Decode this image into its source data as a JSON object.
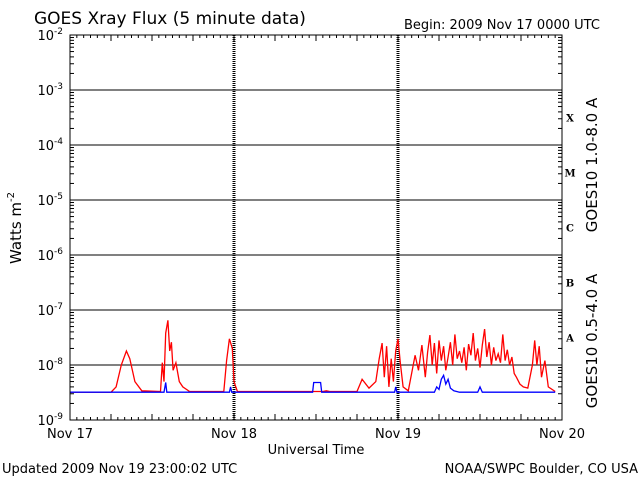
{
  "chart_data": {
    "type": "line",
    "title": "GOES Xray Flux (5 minute data)",
    "begin": "Begin:  2009 Nov 17 0000 UTC",
    "xlabel": "Universal Time",
    "ylabel": "Watts m",
    "ylabel_sup": "-2",
    "y_scale": "log",
    "ylim": [
      1e-09,
      0.01
    ],
    "y_ticks": [
      {
        "value": 0.01,
        "base": "10",
        "exp": "-2"
      },
      {
        "value": 0.001,
        "base": "10",
        "exp": "-3"
      },
      {
        "value": 0.0001,
        "base": "10",
        "exp": "-4"
      },
      {
        "value": 1e-05,
        "base": "10",
        "exp": "-5"
      },
      {
        "value": 1e-06,
        "base": "10",
        "exp": "-6"
      },
      {
        "value": 1e-07,
        "base": "10",
        "exp": "-7"
      },
      {
        "value": 1e-08,
        "base": "10",
        "exp": "-8"
      },
      {
        "value": 1e-09,
        "base": "10",
        "exp": "-9"
      }
    ],
    "xlim": [
      "2009-11-17 00:00",
      "2009-11-20 00:00"
    ],
    "x_ticks": [
      {
        "date": "2009-11-17 00:00",
        "label": "Nov 17"
      },
      {
        "date": "2009-11-18 00:00",
        "label": "Nov 18"
      },
      {
        "date": "2009-11-19 00:00",
        "label": "Nov 19"
      },
      {
        "date": "2009-11-20 00:00",
        "label": "Nov 20"
      }
    ],
    "flare_classes": [
      {
        "label": "X",
        "min": 0.0001,
        "max": 0.001
      },
      {
        "label": "M",
        "min": 1e-05,
        "max": 0.0001
      },
      {
        "label": "C",
        "min": 1e-06,
        "max": 1e-05
      },
      {
        "label": "B",
        "min": 1e-07,
        "max": 1e-06
      },
      {
        "label": "A",
        "min": 1e-08,
        "max": 1e-07
      }
    ],
    "grid": true,
    "series": [
      {
        "name": "GOES10 1.0-8.0 A",
        "color": "#ff0000",
        "points": [
          [
            "2009-11-17 00:00",
            3.2e-09
          ],
          [
            "2009-11-17 06:00",
            3.2e-09
          ],
          [
            "2009-11-17 06:45",
            4e-09
          ],
          [
            "2009-11-17 07:30",
            1e-08
          ],
          [
            "2009-11-17 08:15",
            1.8e-08
          ],
          [
            "2009-11-17 08:45",
            1.3e-08
          ],
          [
            "2009-11-17 09:30",
            5e-09
          ],
          [
            "2009-11-17 10:30",
            3.4e-09
          ],
          [
            "2009-11-17 13:15",
            3.3e-09
          ],
          [
            "2009-11-17 13:30",
            1.1e-08
          ],
          [
            "2009-11-17 13:45",
            5e-09
          ],
          [
            "2009-11-17 14:00",
            3.8e-08
          ],
          [
            "2009-11-17 14:20",
            6.5e-08
          ],
          [
            "2009-11-17 14:35",
            1.8e-08
          ],
          [
            "2009-11-17 14:50",
            2.6e-08
          ],
          [
            "2009-11-17 15:05",
            8e-09
          ],
          [
            "2009-11-17 15:30",
            1.1e-08
          ],
          [
            "2009-11-17 16:00",
            5e-09
          ],
          [
            "2009-11-17 16:30",
            4e-09
          ],
          [
            "2009-11-17 17:30",
            3.3e-09
          ],
          [
            "2009-11-17 22:30",
            3.3e-09
          ],
          [
            "2009-11-17 22:55",
            1.2e-08
          ],
          [
            "2009-11-17 23:20",
            3e-08
          ],
          [
            "2009-11-17 23:45",
            2e-08
          ],
          [
            "2009-11-18 00:00",
            5e-09
          ],
          [
            "2009-11-18 00:30",
            3.3e-09
          ],
          [
            "2009-11-18 13:00",
            3.3e-09
          ],
          [
            "2009-11-18 13:30",
            3.4e-09
          ],
          [
            "2009-11-18 14:00",
            3.3e-09
          ],
          [
            "2009-11-18 18:00",
            3.3e-09
          ],
          [
            "2009-11-18 18:45",
            5.5e-09
          ],
          [
            "2009-11-18 19:45",
            3.8e-09
          ],
          [
            "2009-11-18 20:45",
            5e-09
          ],
          [
            "2009-11-18 21:15",
            1.3e-08
          ],
          [
            "2009-11-18 21:40",
            2.5e-08
          ],
          [
            "2009-11-18 22:00",
            6e-09
          ],
          [
            "2009-11-18 22:20",
            2.2e-08
          ],
          [
            "2009-11-18 22:40",
            4e-09
          ],
          [
            "2009-11-18 23:00",
            1.3e-08
          ],
          [
            "2009-11-18 23:20",
            5e-09
          ],
          [
            "2009-11-18 23:40",
            1.8e-08
          ],
          [
            "2009-11-19 00:00",
            3e-08
          ],
          [
            "2009-11-19 00:20",
            1.1e-08
          ],
          [
            "2009-11-19 00:45",
            4e-09
          ],
          [
            "2009-11-19 01:30",
            3.4e-09
          ],
          [
            "2009-11-19 02:30",
            1.5e-08
          ],
          [
            "2009-11-19 03:00",
            8e-09
          ],
          [
            "2009-11-19 03:30",
            2.3e-08
          ],
          [
            "2009-11-19 04:00",
            6e-09
          ],
          [
            "2009-11-19 04:20",
            1.7e-08
          ],
          [
            "2009-11-19 04:40",
            3.5e-08
          ],
          [
            "2009-11-19 05:00",
            1e-08
          ],
          [
            "2009-11-19 05:20",
            2.5e-08
          ],
          [
            "2009-11-19 05:40",
            7e-09
          ],
          [
            "2009-11-19 06:00",
            2.8e-08
          ],
          [
            "2009-11-19 06:20",
            1.2e-08
          ],
          [
            "2009-11-19 06:40",
            2.2e-08
          ],
          [
            "2009-11-19 07:00",
            8e-09
          ],
          [
            "2009-11-19 07:20",
            1.4e-08
          ],
          [
            "2009-11-19 07:40",
            2.6e-08
          ],
          [
            "2009-11-19 08:00",
            1e-08
          ],
          [
            "2009-11-19 08:20",
            3.6e-08
          ],
          [
            "2009-11-19 08:40",
            1.3e-08
          ],
          [
            "2009-11-19 09:00",
            1.8e-08
          ],
          [
            "2009-11-19 09:20",
            1.1e-08
          ],
          [
            "2009-11-19 09:40",
            2.1e-08
          ],
          [
            "2009-11-19 10:00",
            8e-09
          ],
          [
            "2009-11-19 10:20",
            2.4e-08
          ],
          [
            "2009-11-19 10:40",
            1.5e-08
          ],
          [
            "2009-11-19 11:00",
            3.8e-08
          ],
          [
            "2009-11-19 11:20",
            1.2e-08
          ],
          [
            "2009-11-19 11:40",
            2e-08
          ],
          [
            "2009-11-19 12:00",
            9e-09
          ],
          [
            "2009-11-19 12:20",
            2.3e-08
          ],
          [
            "2009-11-19 12:40",
            4.5e-08
          ],
          [
            "2009-11-19 13:00",
            1.4e-08
          ],
          [
            "2009-11-19 13:20",
            2.6e-08
          ],
          [
            "2009-11-19 13:40",
            1e-08
          ],
          [
            "2009-11-19 14:00",
            2.1e-08
          ],
          [
            "2009-11-19 14:20",
            1.2e-08
          ],
          [
            "2009-11-19 14:40",
            1.6e-08
          ],
          [
            "2009-11-19 15:00",
            1.1e-08
          ],
          [
            "2009-11-19 15:20",
            3.6e-08
          ],
          [
            "2009-11-19 15:40",
            1.2e-08
          ],
          [
            "2009-11-19 16:00",
            1.9e-08
          ],
          [
            "2009-11-19 16:20",
            1e-08
          ],
          [
            "2009-11-19 16:40",
            1.4e-08
          ],
          [
            "2009-11-19 17:00",
            7e-09
          ],
          [
            "2009-11-19 17:20",
            6e-09
          ],
          [
            "2009-11-19 17:50",
            4.5e-09
          ],
          [
            "2009-11-19 18:20",
            4e-09
          ],
          [
            "2009-11-19 19:00",
            3.8e-09
          ],
          [
            "2009-11-19 19:40",
            1e-08
          ],
          [
            "2009-11-19 20:00",
            2.8e-08
          ],
          [
            "2009-11-19 20:20",
            1e-08
          ],
          [
            "2009-11-19 20:40",
            2.2e-08
          ],
          [
            "2009-11-19 21:00",
            6e-09
          ],
          [
            "2009-11-19 21:30",
            1.2e-08
          ],
          [
            "2009-11-19 22:00",
            4e-09
          ],
          [
            "2009-11-19 23:00",
            3.3e-09
          ]
        ]
      },
      {
        "name": "GOES10 0.5-4.0 A",
        "color": "#0000ff",
        "points": [
          [
            "2009-11-17 00:00",
            3.2e-09
          ],
          [
            "2009-11-17 13:45",
            3.2e-09
          ],
          [
            "2009-11-17 14:00",
            4.8e-09
          ],
          [
            "2009-11-17 14:10",
            3.2e-09
          ],
          [
            "2009-11-17 23:20",
            3.2e-09
          ],
          [
            "2009-11-17 23:30",
            4e-09
          ],
          [
            "2009-11-17 23:40",
            3.2e-09
          ],
          [
            "2009-11-18 11:30",
            3.2e-09
          ],
          [
            "2009-11-18 11:40",
            4.8e-09
          ],
          [
            "2009-11-18 12:40",
            4.8e-09
          ],
          [
            "2009-11-18 12:50",
            3.2e-09
          ],
          [
            "2009-11-18 23:30",
            3.2e-09
          ],
          [
            "2009-11-18 23:40",
            4e-09
          ],
          [
            "2009-11-18 23:50",
            3.2e-09
          ],
          [
            "2009-11-19 05:20",
            3.2e-09
          ],
          [
            "2009-11-19 05:40",
            4e-09
          ],
          [
            "2009-11-19 06:00",
            3.6e-09
          ],
          [
            "2009-11-19 06:20",
            5.5e-09
          ],
          [
            "2009-11-19 06:40",
            6.5e-09
          ],
          [
            "2009-11-19 07:00",
            4.5e-09
          ],
          [
            "2009-11-19 07:20",
            5.5e-09
          ],
          [
            "2009-11-19 07:40",
            3.8e-09
          ],
          [
            "2009-11-19 08:10",
            3.4e-09
          ],
          [
            "2009-11-19 09:00",
            3.2e-09
          ],
          [
            "2009-11-19 11:40",
            3.2e-09
          ],
          [
            "2009-11-19 12:00",
            4e-09
          ],
          [
            "2009-11-19 12:20",
            3.2e-09
          ],
          [
            "2009-11-19 23:00",
            3.2e-09
          ]
        ]
      }
    ]
  },
  "footer": {
    "updated": "Updated 2009 Nov 19 23:00:02 UTC",
    "credit": "NOAA/SWPC Boulder, CO USA"
  }
}
